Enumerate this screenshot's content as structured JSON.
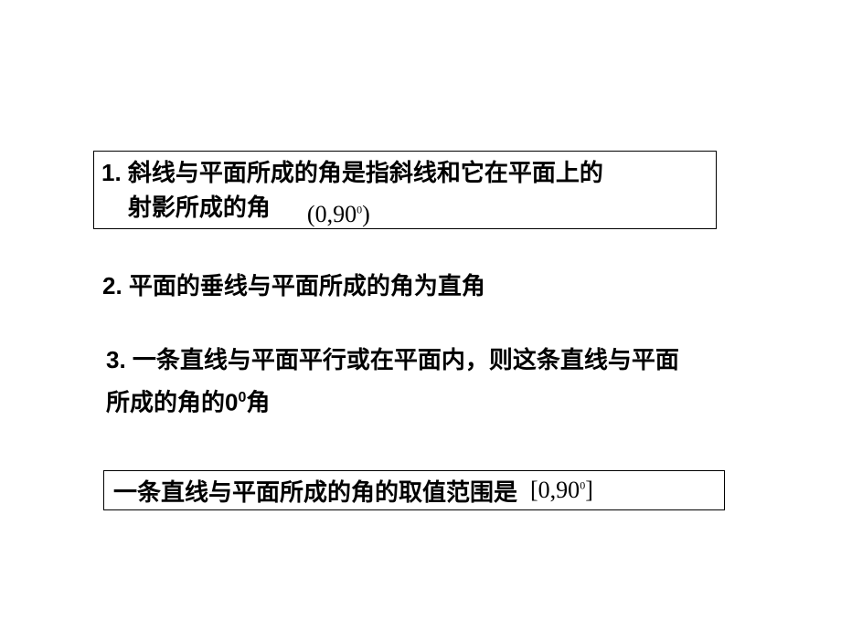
{
  "box1": {
    "line1": "1. 斜线与平面所成的角是指斜线和它在平面上的",
    "line2_prefix": "    射影所成的角",
    "expr_open": "(0,90",
    "expr_sup": "0",
    "expr_close": ")"
  },
  "item2": "2. 平面的垂线与平面所成的角为直角",
  "item3": {
    "prefix": "3.   一条直线与平面平行或在平面内，则这条直线与平面所成的角的0",
    "sup": "0",
    "suffix": "角"
  },
  "box2": {
    "text": "一条直线与平面所成的角的取值范围是",
    "expr_open": "[0,90",
    "expr_sup": "0",
    "expr_close": "]"
  },
  "style": {
    "font_size_main": 26,
    "font_weight_main": 700,
    "border_color": "#000000",
    "text_color": "#000000",
    "bg_color": "#ffffff"
  }
}
